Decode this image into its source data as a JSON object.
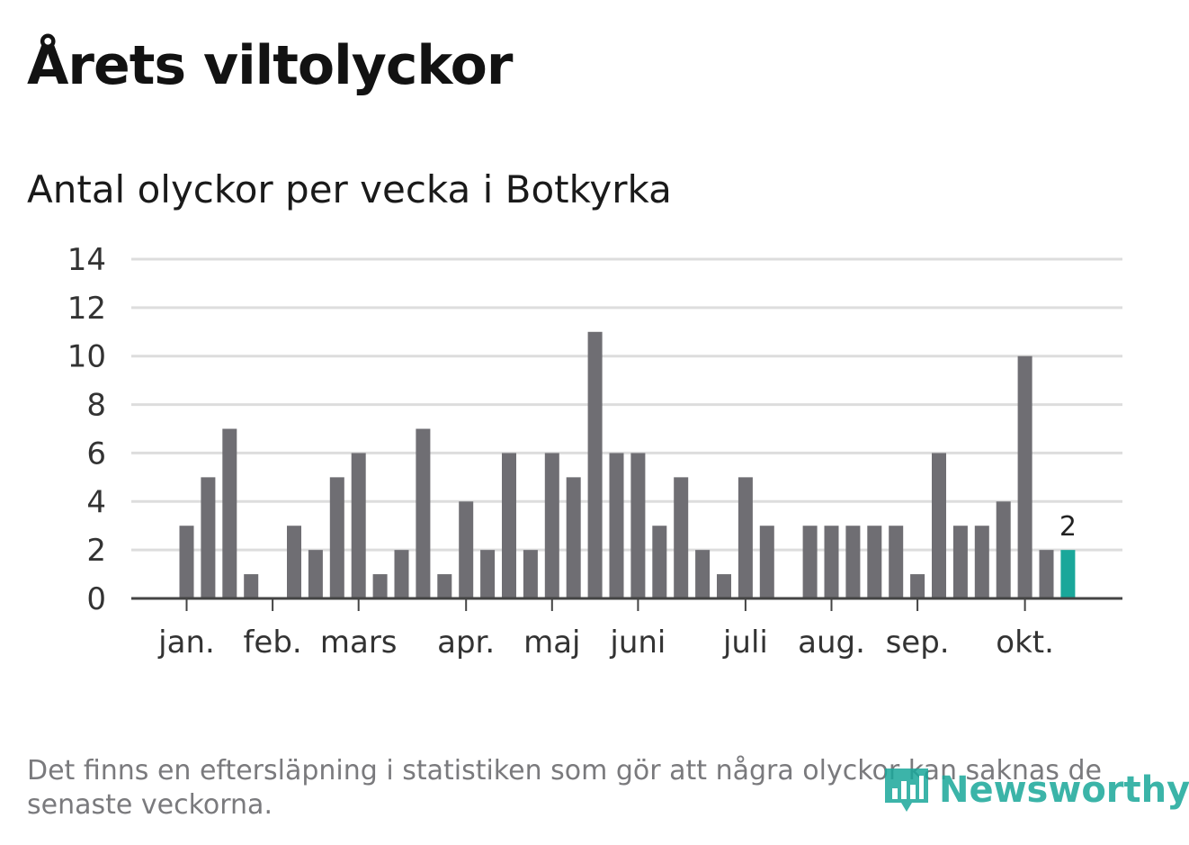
{
  "title": "Årets viltolyckor",
  "subtitle": "Antal olyckor per vecka i Botkyrka",
  "footnote": "Det finns en eftersläpning i statistiken som gör att några olyckor kan saknas de senaste veckorna.",
  "logo": {
    "name": "Newsworthy",
    "icon": "bar-chart-speech-icon",
    "color": "#1aa79a"
  },
  "colors": {
    "bar": "#6f6e73",
    "highlight": "#1aa79a",
    "grid": "#dddddd",
    "axis": "#444444"
  },
  "chart_data": {
    "type": "bar",
    "ylim": [
      0,
      14
    ],
    "yticks": [
      0,
      2,
      4,
      6,
      8,
      10,
      12,
      14
    ],
    "grid": true,
    "values": [
      3,
      5,
      7,
      1,
      0,
      3,
      2,
      5,
      6,
      1,
      2,
      7,
      1,
      4,
      2,
      6,
      2,
      6,
      5,
      11,
      6,
      6,
      3,
      5,
      2,
      1,
      5,
      3,
      0,
      3,
      3,
      3,
      3,
      3,
      1,
      6,
      3,
      3,
      4,
      10,
      2,
      2
    ],
    "highlight_index": 41,
    "highlight_label": "2",
    "month_labels": [
      {
        "label": "jan.",
        "bar_index": 0
      },
      {
        "label": "feb.",
        "bar_index": 4
      },
      {
        "label": "mars",
        "bar_index": 8
      },
      {
        "label": "apr.",
        "bar_index": 13
      },
      {
        "label": "maj",
        "bar_index": 17
      },
      {
        "label": "juni",
        "bar_index": 21
      },
      {
        "label": "juli",
        "bar_index": 26
      },
      {
        "label": "aug.",
        "bar_index": 30
      },
      {
        "label": "sep.",
        "bar_index": 34
      },
      {
        "label": "okt.",
        "bar_index": 39
      }
    ]
  }
}
